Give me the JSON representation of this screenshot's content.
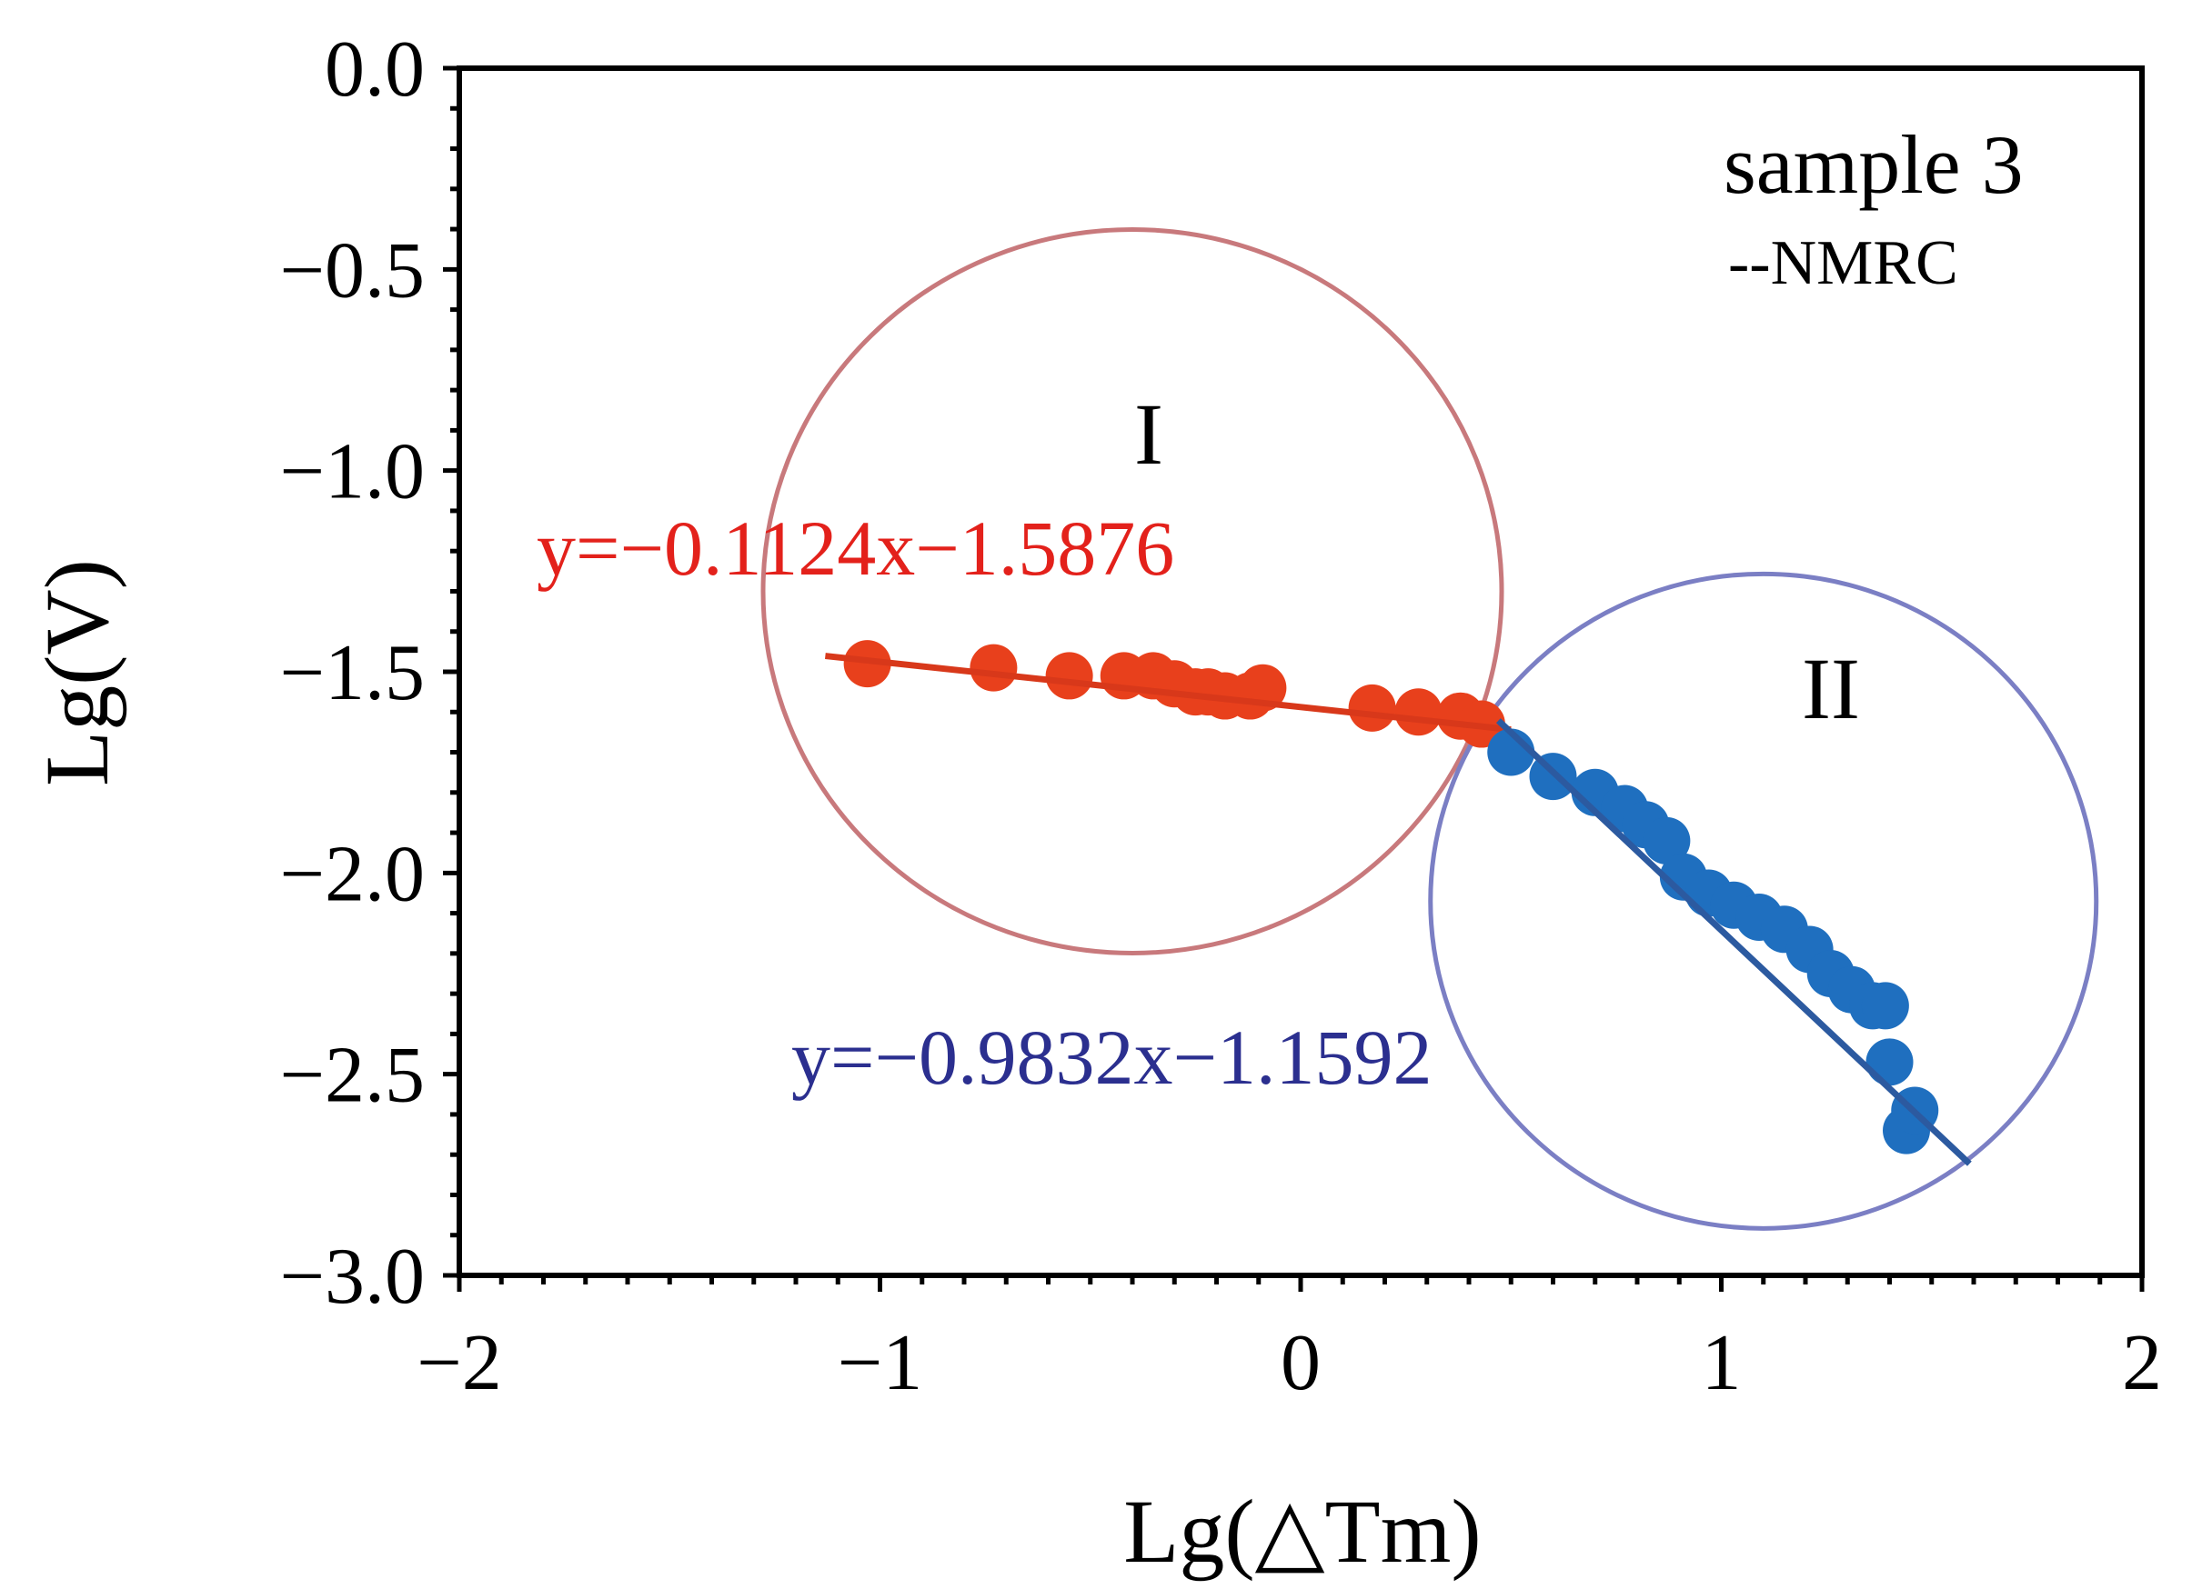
{
  "chart_data": {
    "type": "scatter",
    "title": "",
    "xlabel": "Lg(△Tm)",
    "ylabel": "Lg(V)",
    "xlim": [
      -2,
      2
    ],
    "ylim": [
      -3.0,
      0.0
    ],
    "x_ticks": [
      -2,
      -1,
      0,
      1,
      2
    ],
    "x_tick_labels": [
      "−2",
      "−1",
      "0",
      "1",
      "2"
    ],
    "y_ticks": [
      0.0,
      -0.5,
      -1.0,
      -1.5,
      -2.0,
      -2.5,
      -3.0
    ],
    "y_tick_labels": [
      "0.0",
      "−0.5",
      "−1.0",
      "−1.5",
      "−2.0",
      "−2.5",
      "−3.0"
    ],
    "legend_title": "sample 3",
    "legend_subtitle": "--NMRC",
    "legend_position": "top-right",
    "series": [
      {
        "name": "I",
        "color": "#e8401c",
        "x": [
          -1.03,
          -0.73,
          -0.55,
          -0.42,
          -0.35,
          -0.3,
          -0.25,
          -0.22,
          -0.18,
          -0.12,
          -0.09,
          0.17,
          0.28,
          0.38,
          0.43
        ],
        "y": [
          -1.48,
          -1.49,
          -1.51,
          -1.51,
          -1.51,
          -1.53,
          -1.55,
          -1.55,
          -1.56,
          -1.56,
          -1.54,
          -1.59,
          -1.6,
          -1.61,
          -1.63
        ],
        "fit": {
          "slope": -0.1124,
          "intercept": -1.5876,
          "x_range": [
            -1.13,
            0.5
          ],
          "color": "#d8381a"
        },
        "equation_label": "y=−0.1124x−1.5876",
        "equation_color": "#e3211b"
      },
      {
        "name": "II",
        "color": "#1f6fbf",
        "x": [
          0.5,
          0.6,
          0.7,
          0.77,
          0.82,
          0.87,
          0.91,
          0.97,
          1.03,
          1.09,
          1.15,
          1.21,
          1.26,
          1.31,
          1.36,
          1.39,
          1.4,
          1.44,
          1.46
        ],
        "y": [
          -1.7,
          -1.76,
          -1.8,
          -1.84,
          -1.88,
          -1.92,
          -2.01,
          -2.05,
          -2.08,
          -2.11,
          -2.14,
          -2.19,
          -2.25,
          -2.29,
          -2.33,
          -2.33,
          -2.47,
          -2.64,
          -2.59
        ],
        "fit": {
          "slope": -0.9832,
          "intercept": -1.1592,
          "x_range": [
            0.47,
            1.59
          ],
          "color": "#2c5aa0"
        },
        "equation_label": "y=−0.9832x−1.1592",
        "equation_color": "#2b2f8f"
      }
    ],
    "annotations": [
      {
        "type": "circle",
        "label": "I",
        "center": [
          -0.4,
          -1.3
        ],
        "color": "#c8797c"
      },
      {
        "type": "circle",
        "label": "II",
        "center": [
          1.1,
          -2.07
        ],
        "color": "#7b7fc4"
      }
    ]
  }
}
